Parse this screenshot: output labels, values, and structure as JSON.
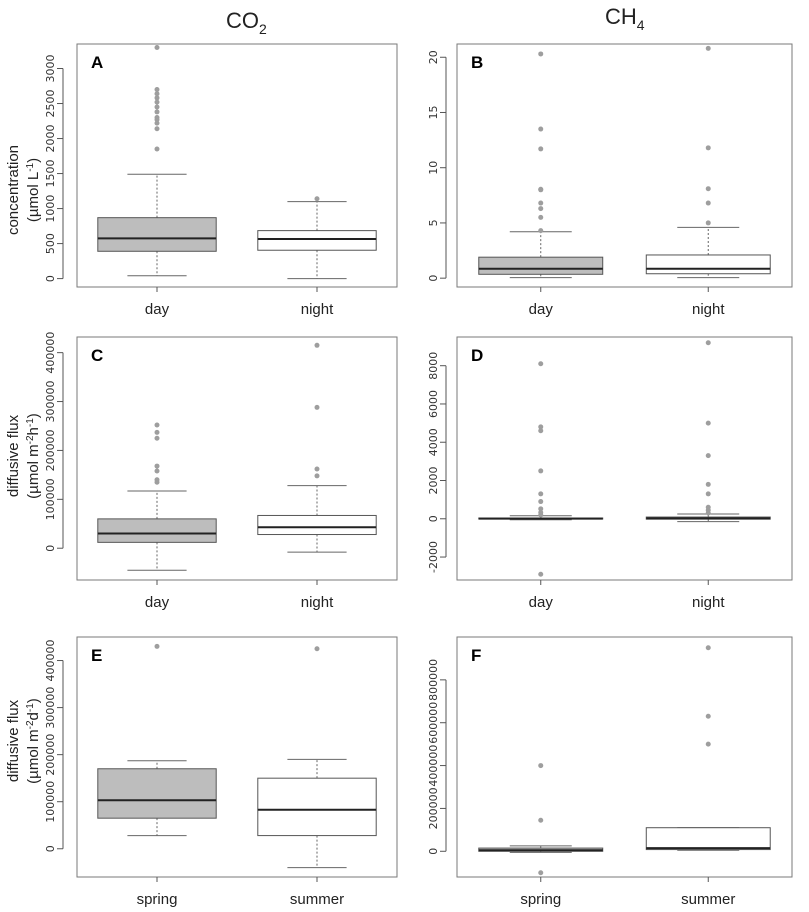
{
  "columns": [
    {
      "main": "CO",
      "sub": "2"
    },
    {
      "main": "CH",
      "sub": "4"
    }
  ],
  "row_ylabels": [
    {
      "line1": "concentration",
      "line2_main": "(µmol L",
      "line2_sup": "-1",
      "line2_end": ")"
    },
    {
      "line1": "diffusive flux",
      "line2_main": "(µmol m",
      "line2_sup": "-2",
      "line2_mid": "h",
      "line2_sup2": "-1",
      "line2_end": ")"
    },
    {
      "line1": "diffusive flux",
      "line2_main": "(µmol m",
      "line2_sup": "-2",
      "line2_mid": "d",
      "line2_sup2": "-1",
      "line2_end": ")"
    }
  ],
  "colors": {
    "filled": "#bdbdbd",
    "empty": "#ffffff",
    "outlier": "#9e9e9e",
    "frame": "#7a7a7a"
  },
  "chart_data": [
    {
      "type": "boxplot",
      "panel": "A",
      "title": "",
      "xlabel": "",
      "ylabel": "concentration (µmol L-1)",
      "ylim": [
        -120,
        3350
      ],
      "yticks": [
        0,
        500,
        1000,
        1500,
        2000,
        2500,
        3000
      ],
      "yticklabels": [
        "0",
        "500",
        "1000",
        "1500",
        "2000",
        "2500",
        "3000"
      ],
      "categories": [
        "day",
        "night"
      ],
      "boxes": [
        {
          "name": "day",
          "filled": true,
          "min": 40,
          "q1": 390,
          "median": 575,
          "q3": 870,
          "max": 1490,
          "outliers": [
            1850,
            2140,
            2220,
            2270,
            2300,
            2380,
            2450,
            2520,
            2580,
            2640,
            2700,
            3300
          ]
        },
        {
          "name": "night",
          "filled": false,
          "min": 0,
          "q1": 405,
          "median": 565,
          "q3": 685,
          "max": 1100,
          "outliers": [
            1140
          ]
        }
      ]
    },
    {
      "type": "boxplot",
      "panel": "B",
      "title": "",
      "xlabel": "",
      "ylabel": "",
      "ylim": [
        -0.8,
        21.2
      ],
      "yticks": [
        0,
        5,
        10,
        15,
        20
      ],
      "yticklabels": [
        "0",
        "5",
        "10",
        "15",
        "20"
      ],
      "categories": [
        "day",
        "night"
      ],
      "boxes": [
        {
          "name": "day",
          "filled": true,
          "min": 0.05,
          "q1": 0.35,
          "median": 0.85,
          "q3": 1.9,
          "max": 4.2,
          "outliers": [
            4.3,
            5.5,
            6.3,
            6.8,
            8.0,
            8.05,
            11.7,
            13.5,
            20.3
          ]
        },
        {
          "name": "night",
          "filled": false,
          "min": 0.05,
          "q1": 0.4,
          "median": 0.85,
          "q3": 2.1,
          "max": 4.6,
          "outliers": [
            5.0,
            6.8,
            8.1,
            11.8,
            20.8
          ]
        }
      ]
    },
    {
      "type": "boxplot",
      "panel": "C",
      "title": "",
      "xlabel": "",
      "ylabel": "diffusive flux (µmol m-2h-1)",
      "ylim": [
        -65000,
        432000
      ],
      "yticks": [
        0,
        100000,
        200000,
        300000,
        400000
      ],
      "yticklabels": [
        "0",
        "100000",
        "200000",
        "300000",
        "400000"
      ],
      "categories": [
        "day",
        "night"
      ],
      "boxes": [
        {
          "name": "day",
          "filled": true,
          "min": -45000,
          "q1": 12000,
          "median": 30000,
          "q3": 60000,
          "max": 117000,
          "outliers": [
            135000,
            140000,
            158000,
            168000,
            225000,
            237000,
            252000
          ]
        },
        {
          "name": "night",
          "filled": false,
          "min": -8000,
          "q1": 28000,
          "median": 43000,
          "q3": 67000,
          "max": 128000,
          "outliers": [
            148000,
            162000,
            288000,
            415000
          ]
        }
      ]
    },
    {
      "type": "boxplot",
      "panel": "D",
      "title": "",
      "xlabel": "",
      "ylabel": "",
      "ylim": [
        -3200,
        9500
      ],
      "yticks": [
        -2000,
        0,
        2000,
        4000,
        6000,
        8000
      ],
      "yticklabels": [
        "-2000",
        "0",
        "2000",
        "4000",
        "6000",
        "8000"
      ],
      "categories": [
        "day",
        "night"
      ],
      "boxes": [
        {
          "name": "day",
          "filled": true,
          "min": -50,
          "q1": -5,
          "median": 10,
          "q3": 40,
          "max": 160,
          "outliers": [
            200,
            330,
            520,
            900,
            1300,
            2500,
            4600,
            4800,
            8100,
            -2900
          ]
        },
        {
          "name": "night",
          "filled": false,
          "min": -150,
          "q1": -20,
          "median": 20,
          "q3": 90,
          "max": 250,
          "outliers": [
            300,
            450,
            600,
            1300,
            1800,
            3300,
            5000,
            9200
          ]
        }
      ]
    },
    {
      "type": "boxplot",
      "panel": "E",
      "title": "",
      "xlabel": "",
      "ylabel": "diffusive flux (µmol m-2d-1)",
      "ylim": [
        -60000,
        450000
      ],
      "yticks": [
        0,
        100000,
        200000,
        300000,
        400000
      ],
      "yticklabels": [
        "0",
        "100000",
        "200000",
        "300000",
        "400000"
      ],
      "categories": [
        "spring",
        "summer"
      ],
      "boxes": [
        {
          "name": "spring",
          "filled": true,
          "min": 28000,
          "q1": 65000,
          "median": 103000,
          "q3": 170000,
          "max": 187000,
          "outliers": [
            430000
          ]
        },
        {
          "name": "summer",
          "filled": false,
          "min": -40000,
          "q1": 28000,
          "median": 83000,
          "q3": 150000,
          "max": 190000,
          "outliers": [
            425000
          ]
        }
      ]
    },
    {
      "type": "boxplot",
      "panel": "F",
      "title": "",
      "xlabel": "",
      "ylabel": "",
      "ylim": [
        -120000,
        1000000
      ],
      "yticks": [
        0,
        200000,
        400000,
        600000,
        800000
      ],
      "yticklabels": [
        "0",
        "200000",
        "400000",
        "600000",
        "800000"
      ],
      "categories": [
        "spring",
        "summer"
      ],
      "boxes": [
        {
          "name": "spring",
          "filled": true,
          "min": -5000,
          "q1": 0,
          "median": 5000,
          "q3": 15000,
          "max": 25000,
          "outliers": [
            145000,
            400000,
            -100000
          ]
        },
        {
          "name": "summer",
          "filled": false,
          "min": 5000,
          "q1": 8000,
          "median": 15000,
          "q3": 110000,
          "max": 110000,
          "outliers": [
            500000,
            630000,
            950000
          ]
        }
      ]
    }
  ]
}
